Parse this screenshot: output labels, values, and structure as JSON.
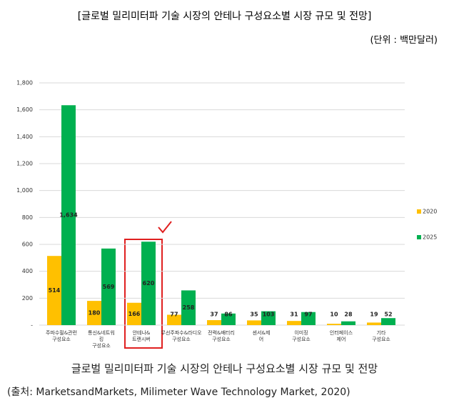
{
  "chart_data": {
    "type": "bar",
    "title": "[글로벌 밀리미터파 기술 시장의 안테나 구성요소별 시장 규모 및 전망]",
    "subtitle": "(단위 : 백만달러)",
    "caption": "글로벌 밀리미터파 기술 시장의 안테나 구성요소별 시장 규모 및 전망",
    "source": "(출처: MarketsandMarkets, Milimeter Wave Technology Market, 2020)",
    "categories": [
      "주파수필&관련\n구성요소",
      "통신&네트워\n킹\n구성요소",
      "안테나&\n트랜시버",
      "무선주파수&라디오\n구성요소",
      "전력&배터리\n구성요소",
      "센서&제\n어",
      "이미징\n구성요소",
      "인터페이스\n제어",
      "기타\n구성요소"
    ],
    "series": [
      {
        "name": "2020",
        "color": "#ffc000",
        "values": [
          514,
          180,
          166,
          77,
          37,
          35,
          31,
          10,
          19
        ]
      },
      {
        "name": "2025",
        "color": "#00b050",
        "values": [
          1634,
          569,
          620,
          258,
          86,
          103,
          97,
          28,
          52
        ],
        "value_labels": [
          "1,634",
          "569",
          "620",
          "258",
          "86",
          "103",
          "97",
          "28",
          "52"
        ]
      }
    ],
    "ylim": [
      0,
      1800
    ],
    "yticks": [
      {
        "value": 0,
        "label": "-"
      },
      200,
      400,
      600,
      800,
      {
        "value": 1000,
        "label": "1,000"
      },
      {
        "value": 1200,
        "label": "1,200"
      },
      {
        "value": 1400,
        "label": "1,400"
      },
      {
        "value": 1600,
        "label": "1,600"
      },
      {
        "value": 1800,
        "label": "1,800"
      }
    ],
    "grid": true,
    "legend": "right"
  }
}
